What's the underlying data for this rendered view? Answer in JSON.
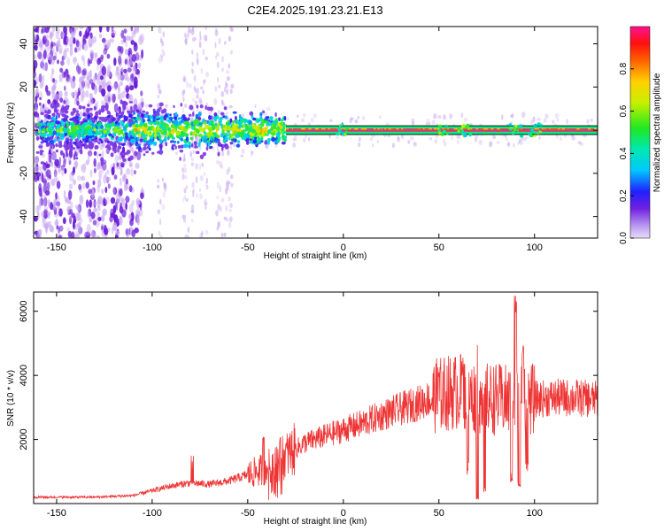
{
  "title": "C2E4.2025.191.23.21.E13",
  "colors": {
    "snr_line": "#ee3333",
    "band_center": "#e8306a",
    "band_edge": "#111111",
    "scatter_purple": "#6a1bd8",
    "scatter_light": "#c9a8f0"
  },
  "chart_data": [
    {
      "type": "heatmap",
      "xlabel": "Height of straight line (km)",
      "ylabel": "Frequency (Hz)",
      "xlim": [
        -162,
        133
      ],
      "ylim": [
        -50,
        48
      ],
      "xticks": [
        -150,
        -100,
        -50,
        0,
        50,
        100
      ],
      "yticks": [
        -40,
        -20,
        0,
        20,
        40
      ],
      "grid": false,
      "colorbar": {
        "label": "Normalized spectral amplitude",
        "range": [
          0,
          1
        ],
        "ticks": [
          0.0,
          0.2,
          0.4,
          0.6,
          0.8
        ],
        "colormap": "rainbow (purple-blue-cyan-green-yellow-orange-red-magenta)"
      },
      "features": {
        "diffuse_scatter_x_range": [
          -162,
          -105
        ],
        "diffuse_scatter_frequency_range": [
          -50,
          48
        ],
        "central_band_start_x": -30,
        "central_band_frequency_hz": 0,
        "central_band_half_width_hz": 2,
        "central_band_amplitude": 0.95,
        "noisy_center_x_range": [
          -110,
          -30
        ],
        "bulges_x": [
          0,
          52,
          63,
          90,
          100
        ]
      }
    },
    {
      "type": "line",
      "xlabel": "Height of straight line (km)",
      "ylabel": "SNR (10 * v/v)",
      "xlim": [
        -162,
        133
      ],
      "ylim": [
        0,
        6600
      ],
      "xticks": [
        -150,
        -100,
        -50,
        0,
        50,
        100
      ],
      "yticks": [
        2000,
        4000,
        6000
      ],
      "grid": false,
      "series": [
        {
          "envelope_x": [
            -162,
            -130,
            -110,
            -100,
            -90,
            -80,
            -70,
            -60,
            -50,
            -40,
            -30,
            -20,
            -10,
            0,
            10,
            20,
            30,
            40,
            50,
            60,
            70,
            80,
            90,
            100,
            110,
            120,
            133
          ],
          "envelope_y": [
            200,
            200,
            250,
            400,
            550,
            650,
            600,
            700,
            900,
            1100,
            1500,
            1900,
            2100,
            2300,
            2500,
            2750,
            2950,
            3150,
            3400,
            3500,
            3300,
            3250,
            3200,
            3250,
            3300,
            3300,
            3250
          ],
          "spikes": [
            {
              "x": -79,
              "y": 1500
            },
            {
              "x": -42,
              "y": 2250
            },
            {
              "x": 50,
              "y": 4300
            },
            {
              "x": 62,
              "y": 4700
            },
            {
              "x": 70,
              "y": 4950
            },
            {
              "x": 90,
              "y": 6600
            },
            {
              "x": 94,
              "y": 5100
            }
          ],
          "dips": [
            {
              "x": 65,
              "y": 1100
            },
            {
              "x": 70,
              "y": 150
            },
            {
              "x": 74,
              "y": 400
            },
            {
              "x": 88,
              "y": 800
            },
            {
              "x": 92,
              "y": 600
            },
            {
              "x": 96,
              "y": 1200
            }
          ]
        }
      ]
    }
  ]
}
